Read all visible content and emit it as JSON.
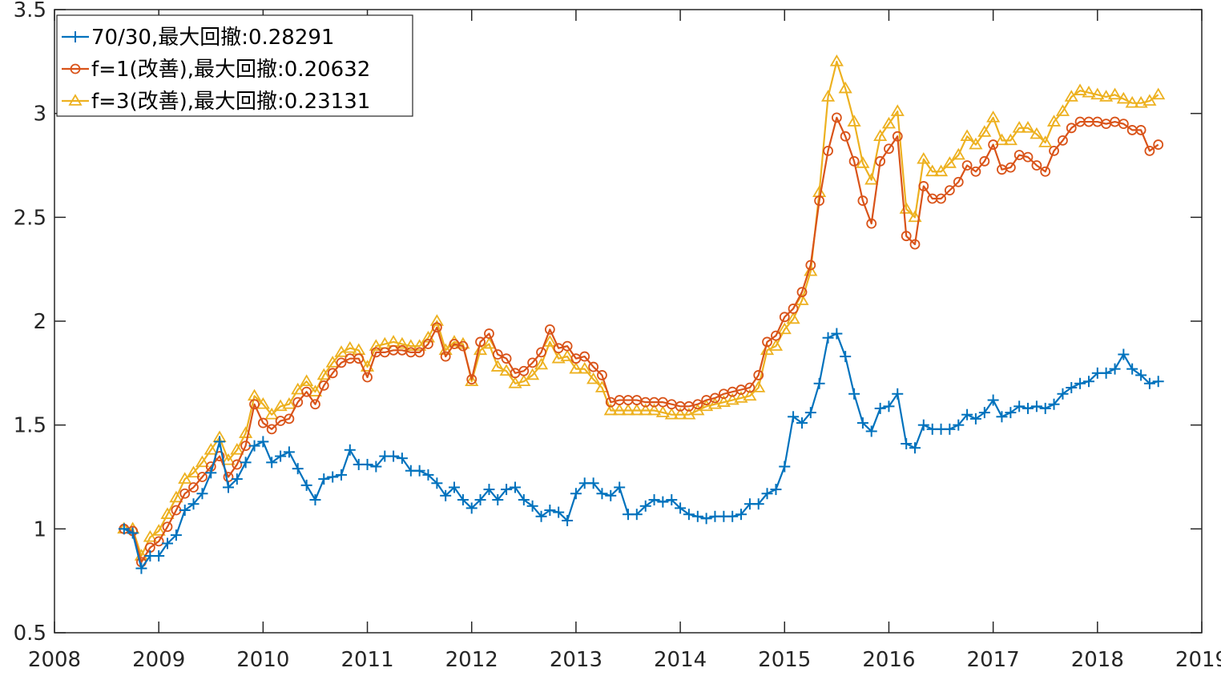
{
  "chart_data": {
    "type": "line",
    "title": "",
    "xlabel": "",
    "ylabel": "",
    "xlim": [
      2008,
      2019
    ],
    "ylim": [
      0.5,
      3.5
    ],
    "x_ticks": [
      "2008",
      "2009",
      "2010",
      "2011",
      "2012",
      "2013",
      "2014",
      "2015",
      "2016",
      "2017",
      "2018",
      "2019"
    ],
    "y_ticks": [
      "0.5",
      "1",
      "1.5",
      "2",
      "2.5",
      "3",
      "3.5"
    ],
    "grid": false,
    "legend_position": "top-left",
    "x": [
      2008.667,
      2008.75,
      2008.833,
      2008.917,
      2009.0,
      2009.083,
      2009.167,
      2009.25,
      2009.333,
      2009.417,
      2009.5,
      2009.583,
      2009.667,
      2009.75,
      2009.833,
      2009.917,
      2010.0,
      2010.083,
      2010.167,
      2010.25,
      2010.333,
      2010.417,
      2010.5,
      2010.583,
      2010.667,
      2010.75,
      2010.833,
      2010.917,
      2011.0,
      2011.083,
      2011.167,
      2011.25,
      2011.333,
      2011.417,
      2011.5,
      2011.583,
      2011.667,
      2011.75,
      2011.833,
      2011.917,
      2012.0,
      2012.083,
      2012.167,
      2012.25,
      2012.333,
      2012.417,
      2012.5,
      2012.583,
      2012.667,
      2012.75,
      2012.833,
      2012.917,
      2013.0,
      2013.083,
      2013.167,
      2013.25,
      2013.333,
      2013.417,
      2013.5,
      2013.583,
      2013.667,
      2013.75,
      2013.833,
      2013.917,
      2014.0,
      2014.083,
      2014.167,
      2014.25,
      2014.333,
      2014.417,
      2014.5,
      2014.583,
      2014.667,
      2014.75,
      2014.833,
      2014.917,
      2015.0,
      2015.083,
      2015.167,
      2015.25,
      2015.333,
      2015.417,
      2015.5,
      2015.583,
      2015.667,
      2015.75,
      2015.833,
      2015.917,
      2016.0,
      2016.083,
      2016.167,
      2016.25,
      2016.333,
      2016.417,
      2016.5,
      2016.583,
      2016.667,
      2016.75,
      2016.833,
      2016.917,
      2017.0,
      2017.083,
      2017.167,
      2017.25,
      2017.333,
      2017.417,
      2017.5,
      2017.583,
      2017.667,
      2017.75,
      2017.833,
      2017.917,
      2018.0,
      2018.083,
      2018.167,
      2018.25,
      2018.333,
      2018.417,
      2018.5,
      2018.583
    ],
    "series": [
      {
        "name": "70/30,最大回撤:0.28291",
        "color": "#0072BD",
        "marker": "plus",
        "values": [
          1.0,
          0.98,
          0.81,
          0.87,
          0.87,
          0.93,
          0.97,
          1.09,
          1.12,
          1.17,
          1.27,
          1.42,
          1.2,
          1.24,
          1.32,
          1.4,
          1.42,
          1.32,
          1.35,
          1.37,
          1.29,
          1.21,
          1.14,
          1.24,
          1.25,
          1.26,
          1.38,
          1.31,
          1.31,
          1.3,
          1.35,
          1.35,
          1.34,
          1.28,
          1.28,
          1.26,
          1.22,
          1.16,
          1.2,
          1.14,
          1.1,
          1.14,
          1.19,
          1.14,
          1.19,
          1.2,
          1.14,
          1.11,
          1.06,
          1.09,
          1.08,
          1.04,
          1.17,
          1.22,
          1.22,
          1.17,
          1.16,
          1.2,
          1.07,
          1.07,
          1.11,
          1.14,
          1.13,
          1.14,
          1.1,
          1.07,
          1.06,
          1.05,
          1.06,
          1.06,
          1.06,
          1.07,
          1.12,
          1.12,
          1.17,
          1.19,
          1.3,
          1.54,
          1.51,
          1.56,
          1.7,
          1.92,
          1.94,
          1.83,
          1.65,
          1.51,
          1.47,
          1.58,
          1.59,
          1.65,
          1.41,
          1.39,
          1.5,
          1.48,
          1.48,
          1.48,
          1.5,
          1.55,
          1.53,
          1.56,
          1.62,
          1.54,
          1.56,
          1.59,
          1.58,
          1.59,
          1.58,
          1.6,
          1.65,
          1.68,
          1.7,
          1.71,
          1.75,
          1.75,
          1.77,
          1.84,
          1.77,
          1.74,
          1.7,
          1.71
        ]
      },
      {
        "name": "f=1(改善),最大回撤:0.20632",
        "color": "#D95319",
        "marker": "circle",
        "values": [
          1.0,
          0.99,
          0.84,
          0.91,
          0.94,
          1.01,
          1.09,
          1.17,
          1.2,
          1.25,
          1.3,
          1.35,
          1.25,
          1.31,
          1.4,
          1.6,
          1.51,
          1.48,
          1.52,
          1.53,
          1.61,
          1.66,
          1.6,
          1.69,
          1.75,
          1.8,
          1.82,
          1.82,
          1.73,
          1.85,
          1.85,
          1.86,
          1.86,
          1.85,
          1.85,
          1.89,
          1.97,
          1.83,
          1.89,
          1.88,
          1.72,
          1.9,
          1.94,
          1.84,
          1.82,
          1.75,
          1.76,
          1.8,
          1.85,
          1.96,
          1.87,
          1.88,
          1.82,
          1.83,
          1.78,
          1.74,
          1.61,
          1.62,
          1.62,
          1.62,
          1.61,
          1.61,
          1.61,
          1.6,
          1.59,
          1.59,
          1.6,
          1.62,
          1.63,
          1.65,
          1.66,
          1.67,
          1.68,
          1.74,
          1.9,
          1.93,
          2.02,
          2.06,
          2.14,
          2.27,
          2.58,
          2.82,
          2.98,
          2.89,
          2.77,
          2.58,
          2.47,
          2.77,
          2.83,
          2.89,
          2.41,
          2.37,
          2.65,
          2.59,
          2.59,
          2.63,
          2.67,
          2.75,
          2.72,
          2.77,
          2.85,
          2.73,
          2.74,
          2.8,
          2.79,
          2.75,
          2.72,
          2.82,
          2.87,
          2.93,
          2.96,
          2.96,
          2.96,
          2.95,
          2.96,
          2.95,
          2.92,
          2.92,
          2.82,
          2.85
        ]
      },
      {
        "name": "f=3(改善),最大回撤:0.23131",
        "color": "#EDB120",
        "marker": "triangle",
        "values": [
          1.0,
          1.0,
          0.87,
          0.96,
          0.99,
          1.07,
          1.15,
          1.24,
          1.27,
          1.32,
          1.38,
          1.44,
          1.33,
          1.38,
          1.46,
          1.64,
          1.6,
          1.55,
          1.59,
          1.6,
          1.67,
          1.71,
          1.66,
          1.74,
          1.8,
          1.85,
          1.87,
          1.86,
          1.78,
          1.88,
          1.89,
          1.9,
          1.89,
          1.88,
          1.88,
          1.92,
          2.0,
          1.86,
          1.9,
          1.89,
          1.71,
          1.86,
          1.89,
          1.78,
          1.76,
          1.7,
          1.71,
          1.74,
          1.79,
          1.9,
          1.82,
          1.83,
          1.77,
          1.77,
          1.72,
          1.68,
          1.57,
          1.57,
          1.57,
          1.57,
          1.57,
          1.57,
          1.56,
          1.55,
          1.55,
          1.55,
          1.57,
          1.59,
          1.6,
          1.61,
          1.62,
          1.63,
          1.64,
          1.68,
          1.86,
          1.88,
          1.96,
          2.01,
          2.1,
          2.24,
          2.62,
          3.08,
          3.25,
          3.12,
          2.96,
          2.76,
          2.68,
          2.89,
          2.95,
          3.01,
          2.54,
          2.5,
          2.78,
          2.72,
          2.72,
          2.76,
          2.8,
          2.89,
          2.85,
          2.91,
          2.98,
          2.87,
          2.87,
          2.93,
          2.93,
          2.9,
          2.86,
          2.96,
          3.01,
          3.08,
          3.11,
          3.1,
          3.09,
          3.08,
          3.09,
          3.07,
          3.05,
          3.05,
          3.06,
          3.09
        ]
      }
    ]
  },
  "legend": {
    "entries": [
      "70/30,最大回撤:0.28291",
      "f=1(改善),最大回撤:0.20632",
      "f=3(改善),最大回撤:0.23131"
    ]
  }
}
